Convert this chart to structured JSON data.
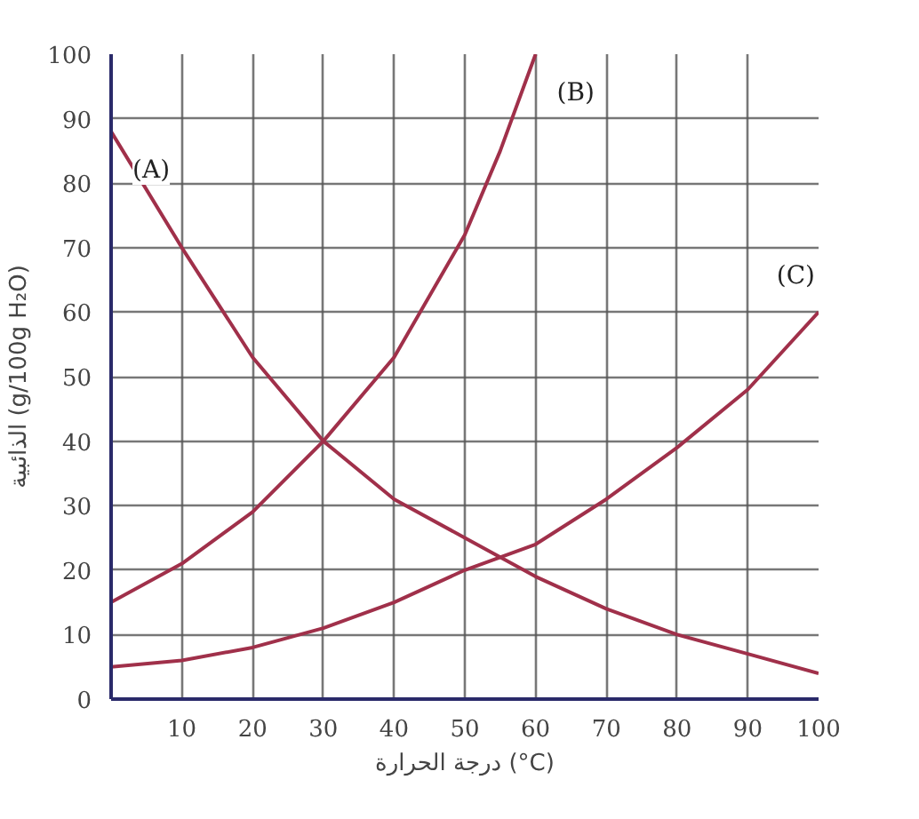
{
  "chart_data": {
    "type": "line",
    "xlabel": "درجة الحرارة (°C)",
    "ylabel": "الذائبية (g/100g H₂O)",
    "xlim": [
      0,
      100
    ],
    "ylim": [
      0,
      100
    ],
    "xticks": [
      10,
      20,
      30,
      40,
      50,
      60,
      70,
      80,
      90,
      100
    ],
    "yticks": [
      0,
      10,
      20,
      30,
      40,
      50,
      60,
      70,
      80,
      90,
      100
    ],
    "grid": true,
    "marker": "none",
    "line_style": "solid",
    "series": [
      {
        "name": "(A)",
        "color": "#a0304a",
        "x": [
          0,
          10,
          20,
          30,
          40,
          50,
          55,
          60,
          70,
          80,
          90,
          100
        ],
        "values": [
          88,
          70,
          53,
          40,
          31,
          25,
          22,
          19,
          14,
          10,
          7,
          4
        ]
      },
      {
        "name": "(B)",
        "color": "#a0304a",
        "x": [
          0,
          10,
          20,
          30,
          40,
          50,
          55,
          60
        ],
        "values": [
          15,
          21,
          29,
          40,
          53,
          72,
          85,
          100
        ]
      },
      {
        "name": "(C)",
        "color": "#a0304a",
        "x": [
          0,
          10,
          20,
          30,
          40,
          50,
          55,
          60,
          70,
          80,
          90,
          100
        ],
        "values": [
          5,
          6,
          8,
          11,
          15,
          20,
          22,
          24,
          31,
          39,
          48,
          60
        ]
      }
    ]
  }
}
